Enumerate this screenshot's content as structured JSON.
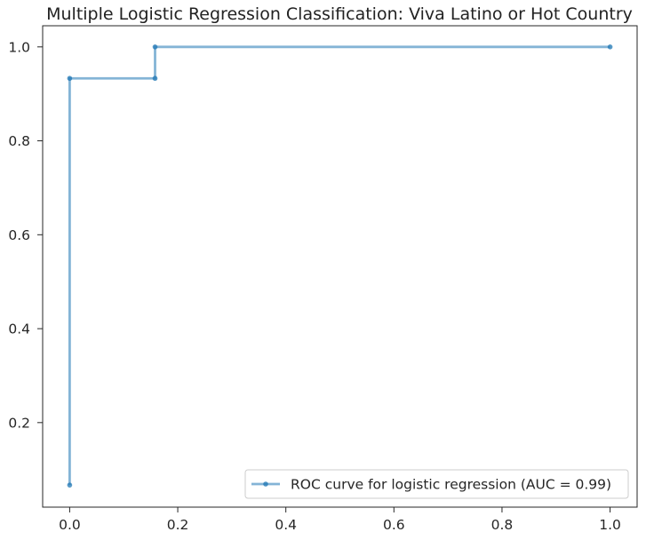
{
  "chart_data": {
    "type": "line",
    "title": "Multiple Logistic Regression Classification: Viva Latino or Hot Country",
    "xlabel": "",
    "ylabel": "",
    "x_ticks": [
      "0.0",
      "0.2",
      "0.4",
      "0.6",
      "0.8",
      "1.0"
    ],
    "y_ticks": [
      "0.2",
      "0.4",
      "0.6",
      "0.8",
      "1.0"
    ],
    "xlim": [
      -0.05,
      1.05
    ],
    "ylim": [
      0.02,
      1.045
    ],
    "grid": false,
    "legend_position": "lower-right",
    "series": [
      {
        "name": "ROC curve for logistic regression (AUC = 0.99)",
        "color": "#1f77b4",
        "line_style": "step-post",
        "marker": "circle",
        "x": [
          0.0,
          0.0,
          0.158,
          0.158,
          1.0
        ],
        "y": [
          0.067,
          0.933,
          0.933,
          1.0,
          1.0
        ]
      }
    ]
  }
}
